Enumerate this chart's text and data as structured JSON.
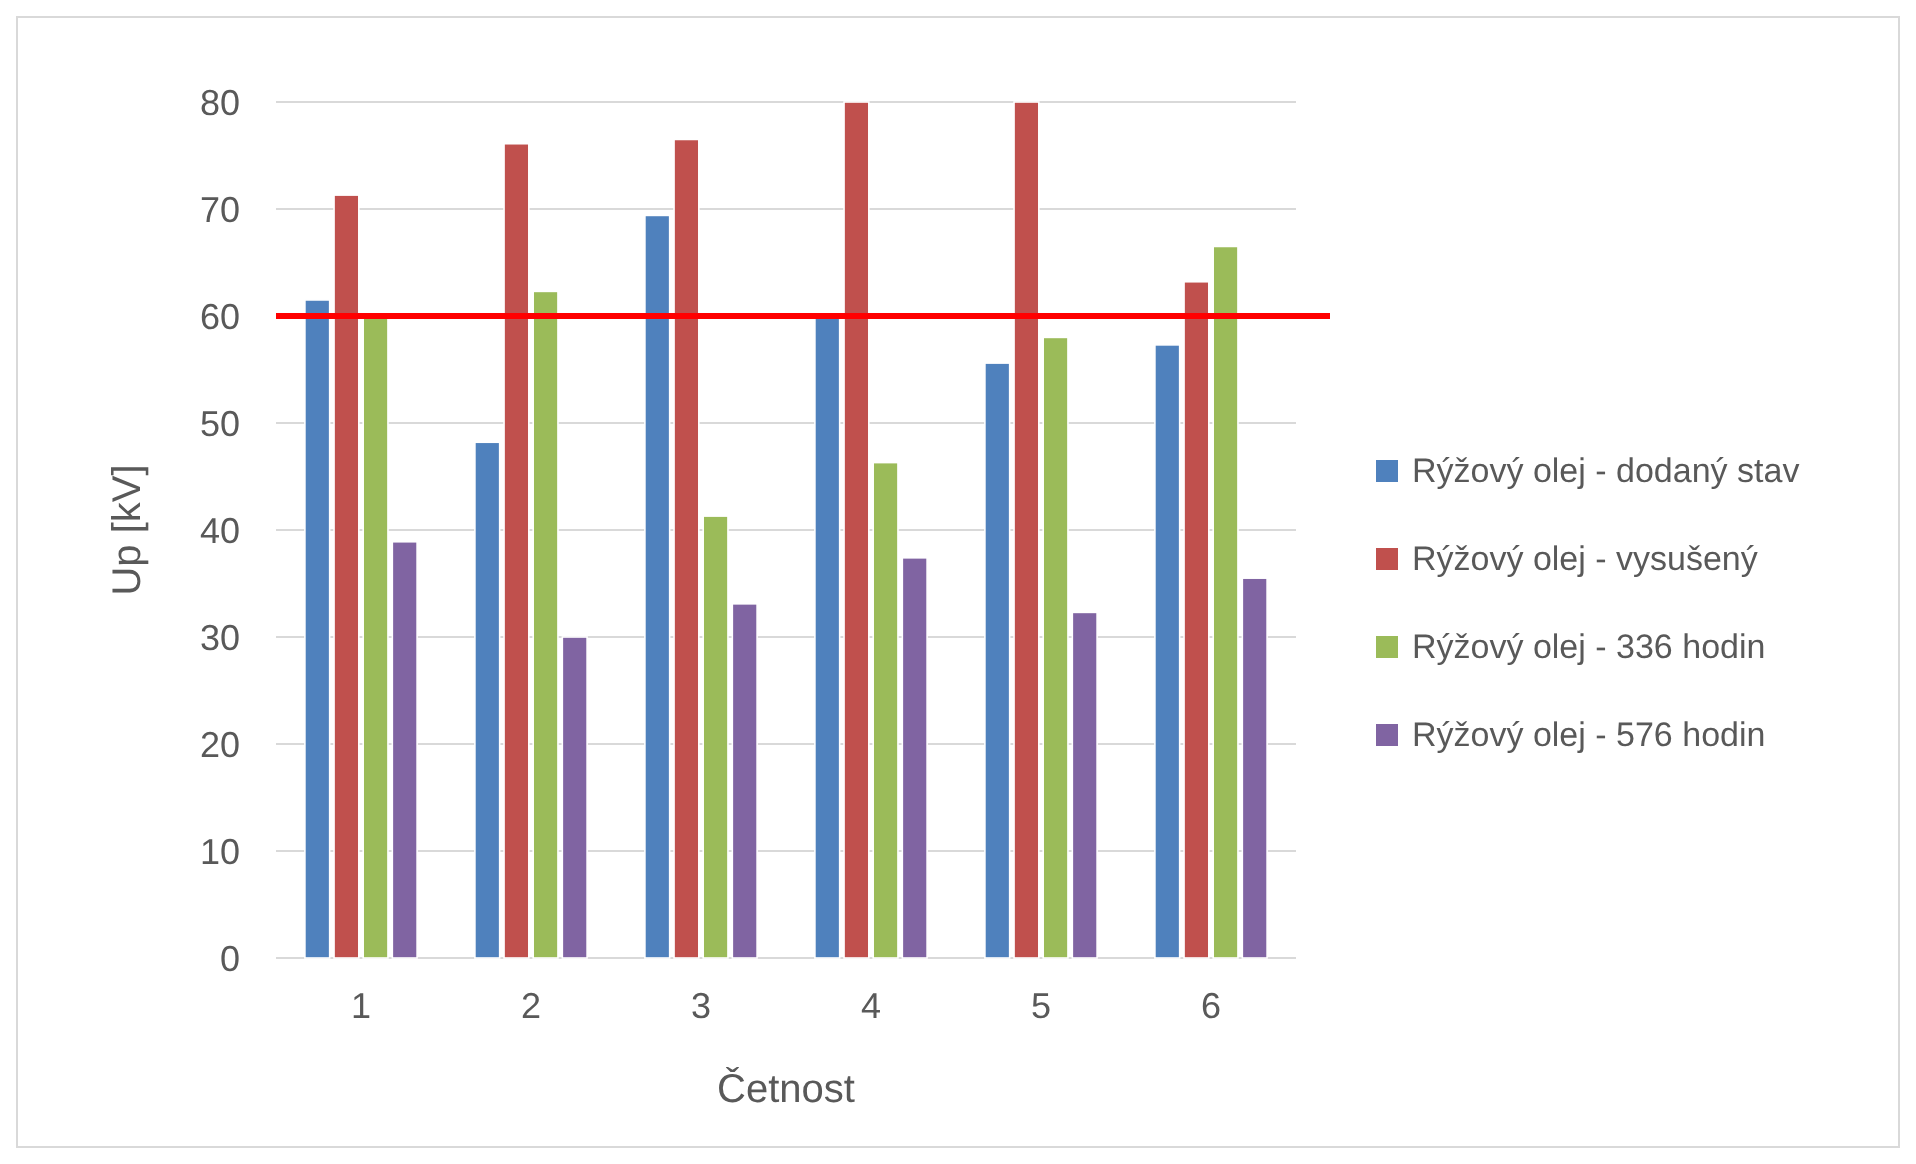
{
  "chart_data": {
    "type": "bar",
    "xlabel": "Četnost",
    "ylabel": "Up [kV]",
    "categories": [
      "1",
      "2",
      "3",
      "4",
      "5",
      "6"
    ],
    "series": [
      {
        "name": "Rýžový olej - dodaný stav",
        "color": "#4f81bd",
        "values": [
          61.5,
          48.2,
          69.4,
          60,
          55.6,
          57.3
        ]
      },
      {
        "name": "Rýžový olej - vysušený",
        "color": "#c0504d",
        "values": [
          71.3,
          76.1,
          76.5,
          80,
          80,
          63.2
        ]
      },
      {
        "name": "Rýžový olej - 336 hodin",
        "color": "#9bbb59",
        "values": [
          60,
          62.3,
          41.3,
          46.3,
          58,
          66.5
        ]
      },
      {
        "name": "Rýžový olej - 576 hodin",
        "color": "#8064a2",
        "values": [
          38.9,
          30,
          33.1,
          37.4,
          32.3,
          35.5
        ]
      }
    ],
    "ylim": [
      0,
      80
    ],
    "yticks": [
      0,
      10,
      20,
      30,
      40,
      50,
      60,
      70,
      80
    ],
    "grid": "y",
    "legend": "right",
    "ref_lines": [
      {
        "axis": "y",
        "value": 60,
        "color": "#ff0000"
      }
    ]
  }
}
